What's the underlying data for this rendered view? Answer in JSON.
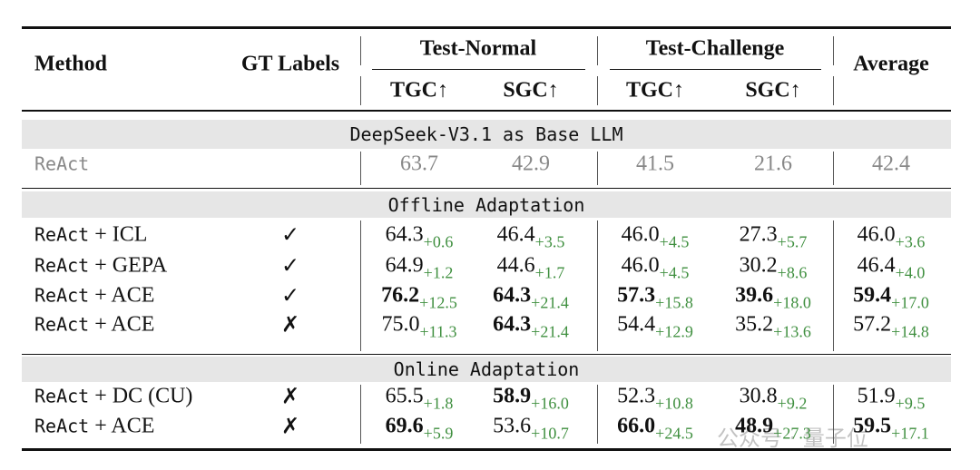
{
  "header": {
    "method": "Method",
    "gt_labels": "GT Labels",
    "test_normal": "Test-Normal",
    "test_challenge": "Test-Challenge",
    "average": "Average",
    "subcolumns": [
      "TGC↑",
      "SGC↑",
      "TGC↑",
      "SGC↑"
    ]
  },
  "sections": [
    {
      "title": "DeepSeek-V3.1 as Base LLM",
      "baseline": true,
      "rows": [
        {
          "method": {
            "base": "ReAct"
          },
          "cells": [
            {
              "value": "63.7"
            },
            {
              "value": "42.9"
            },
            {
              "value": "41.5"
            },
            {
              "value": "21.6"
            },
            {
              "value": "42.4"
            }
          ]
        }
      ]
    },
    {
      "title": "Offline Adaptation",
      "rows": [
        {
          "method": {
            "base": "ReAct",
            "suffix": "+ ICL"
          },
          "gt": "✓",
          "cells": [
            {
              "value": "64.3",
              "delta": "+0.6"
            },
            {
              "value": "46.4",
              "delta": "+3.5"
            },
            {
              "value": "46.0",
              "delta": "+4.5"
            },
            {
              "value": "27.3",
              "delta": "+5.7"
            },
            {
              "value": "46.0",
              "delta": "+3.6"
            }
          ]
        },
        {
          "method": {
            "base": "ReAct",
            "suffix": "+ GEPA"
          },
          "gt": "✓",
          "cells": [
            {
              "value": "64.9",
              "delta": "+1.2"
            },
            {
              "value": "44.6",
              "delta": "+1.7"
            },
            {
              "value": "46.0",
              "delta": "+4.5"
            },
            {
              "value": "30.2",
              "delta": "+8.6"
            },
            {
              "value": "46.4",
              "delta": "+4.0"
            }
          ]
        },
        {
          "method": {
            "base": "ReAct",
            "suffix": "+ ACE"
          },
          "gt": "✓",
          "cells": [
            {
              "value": "76.2",
              "delta": "+12.5",
              "bold": true
            },
            {
              "value": "64.3",
              "delta": "+21.4",
              "bold": true
            },
            {
              "value": "57.3",
              "delta": "+15.8",
              "bold": true
            },
            {
              "value": "39.6",
              "delta": "+18.0",
              "bold": true
            },
            {
              "value": "59.4",
              "delta": "+17.0",
              "bold": true
            }
          ]
        },
        {
          "method": {
            "base": "ReAct",
            "suffix": "+ ACE"
          },
          "gt": "✗",
          "cells": [
            {
              "value": "75.0",
              "delta": "+11.3"
            },
            {
              "value": "64.3",
              "delta": "+21.4",
              "bold": true
            },
            {
              "value": "54.4",
              "delta": "+12.9"
            },
            {
              "value": "35.2",
              "delta": "+13.6"
            },
            {
              "value": "57.2",
              "delta": "+14.8"
            }
          ]
        }
      ]
    },
    {
      "title": "Online Adaptation",
      "rows": [
        {
          "method": {
            "base": "ReAct",
            "suffix": "+ DC (CU)"
          },
          "gt": "✗",
          "cells": [
            {
              "value": "65.5",
              "delta": "+1.8"
            },
            {
              "value": "58.9",
              "delta": "+16.0",
              "bold": true
            },
            {
              "value": "52.3",
              "delta": "+10.8"
            },
            {
              "value": "30.8",
              "delta": "+9.2"
            },
            {
              "value": "51.9",
              "delta": "+9.5"
            }
          ]
        },
        {
          "method": {
            "base": "ReAct",
            "suffix": "+ ACE"
          },
          "gt": "✗",
          "cells": [
            {
              "value": "69.6",
              "delta": "+5.9",
              "bold": true
            },
            {
              "value": "53.6",
              "delta": "+10.7"
            },
            {
              "value": "66.0",
              "delta": "+24.5",
              "bold": true
            },
            {
              "value": "48.9",
              "delta": "+27.3",
              "bold": true
            },
            {
              "value": "59.5",
              "delta": "+17.1",
              "bold": true
            }
          ]
        }
      ]
    }
  ],
  "watermark": "公众号 · 量子位"
}
